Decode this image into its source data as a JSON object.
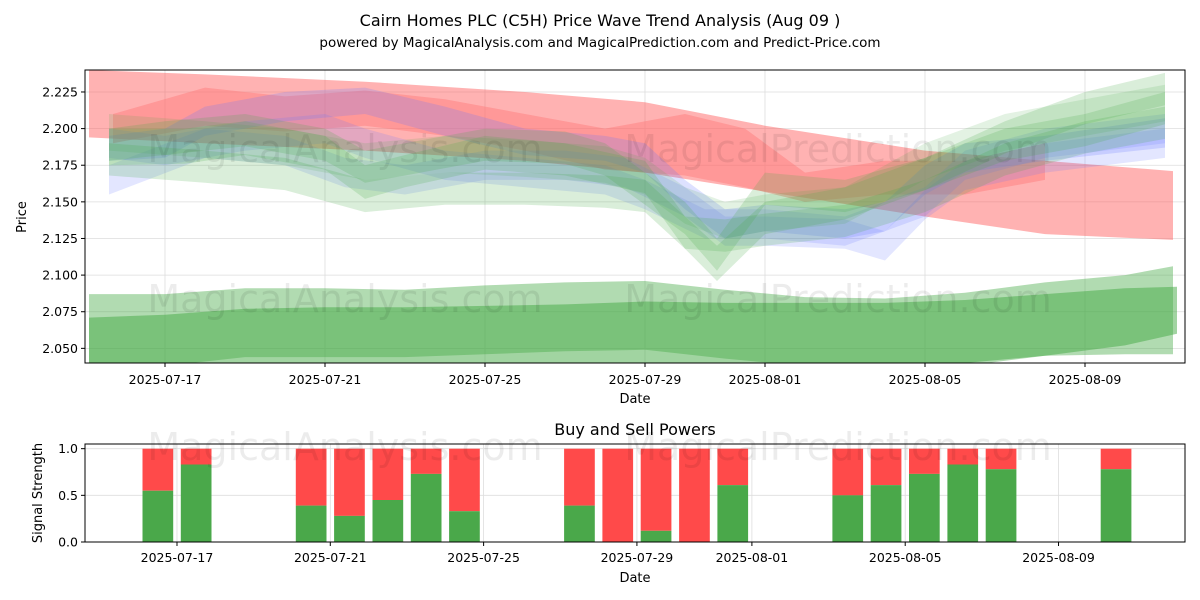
{
  "chart_data": [
    {
      "type": "area",
      "title": "Cairn Homes PLC (C5H) Price Wave Trend Analysis (Aug 09 )",
      "subtitle": "powered by MagicalAnalysis.com and MagicalPrediction.com and Predict-Price.com",
      "xlabel": "Date",
      "ylabel": "Price",
      "ylim": [
        2.04,
        2.24
      ],
      "xlim": [
        -2,
        25.5
      ],
      "grid": true,
      "x_ticks": [
        {
          "pos": 0,
          "label": "2025-07-17"
        },
        {
          "pos": 4,
          "label": "2025-07-21"
        },
        {
          "pos": 8,
          "label": "2025-07-25"
        },
        {
          "pos": 12,
          "label": "2025-07-29"
        },
        {
          "pos": 15,
          "label": "2025-08-01"
        },
        {
          "pos": 19,
          "label": "2025-08-05"
        },
        {
          "pos": 23,
          "label": "2025-08-09"
        }
      ],
      "y_ticks": [
        "2.050",
        "2.075",
        "2.100",
        "2.125",
        "2.150",
        "2.175",
        "2.200",
        "2.225"
      ],
      "watermarks": [
        "MagicalAnalysis.com",
        "MagicalPrediction.com"
      ],
      "bands": [
        {
          "name": "red-trend",
          "color": "#ff5555",
          "opacity": 0.45,
          "x": [
            -1.9,
            1,
            5,
            9,
            12,
            15,
            19,
            22,
            25.2
          ],
          "upper": [
            2.24,
            2.237,
            2.232,
            2.225,
            2.218,
            2.202,
            2.185,
            2.178,
            2.171
          ],
          "lower": [
            2.194,
            2.19,
            2.185,
            2.178,
            2.17,
            2.157,
            2.14,
            2.128,
            2.124
          ]
        },
        {
          "name": "red-wave",
          "color": "#ff7777",
          "opacity": 0.45,
          "x": [
            -1.3,
            1,
            3,
            5,
            7,
            9,
            11,
            13,
            14.5,
            16,
            18,
            20,
            22
          ],
          "upper": [
            2.21,
            2.228,
            2.222,
            2.226,
            2.22,
            2.21,
            2.2,
            2.21,
            2.2,
            2.17,
            2.178,
            2.178,
            2.19
          ],
          "lower": [
            2.19,
            2.202,
            2.198,
            2.202,
            2.195,
            2.185,
            2.172,
            2.168,
            2.16,
            2.15,
            2.155,
            2.155,
            2.165
          ]
        },
        {
          "name": "blue-wave-1",
          "color": "#6677ff",
          "opacity": 0.22,
          "x": [
            -1.4,
            0,
            1,
            3,
            5,
            7,
            9,
            11,
            12,
            13,
            14,
            15,
            17,
            18,
            19,
            20,
            22,
            25
          ],
          "upper": [
            2.195,
            2.2,
            2.215,
            2.225,
            2.228,
            2.215,
            2.2,
            2.195,
            2.19,
            2.165,
            2.145,
            2.148,
            2.145,
            2.15,
            2.175,
            2.19,
            2.195,
            2.207
          ],
          "lower": [
            2.178,
            2.18,
            2.195,
            2.205,
            2.21,
            2.195,
            2.182,
            2.178,
            2.17,
            2.145,
            2.125,
            2.13,
            2.125,
            2.13,
            2.155,
            2.17,
            2.178,
            2.187
          ]
        },
        {
          "name": "blue-wave-2",
          "color": "#6677ff",
          "opacity": 0.18,
          "x": [
            -1.4,
            1,
            3,
            4.5,
            6,
            8,
            10,
            11.5,
            13,
            14,
            15,
            17,
            18,
            19,
            20,
            22,
            25
          ],
          "upper": [
            2.175,
            2.2,
            2.195,
            2.18,
            2.175,
            2.185,
            2.185,
            2.18,
            2.16,
            2.14,
            2.14,
            2.138,
            2.13,
            2.158,
            2.178,
            2.19,
            2.2
          ],
          "lower": [
            2.155,
            2.18,
            2.175,
            2.16,
            2.155,
            2.165,
            2.165,
            2.16,
            2.14,
            2.12,
            2.12,
            2.118,
            2.11,
            2.138,
            2.158,
            2.17,
            2.18
          ]
        },
        {
          "name": "blue-wave-3",
          "color": "#6677ff",
          "opacity": 0.18,
          "x": [
            -1.4,
            0,
            2,
            4,
            5,
            7,
            9,
            11,
            12,
            13.5,
            15,
            17,
            19,
            20,
            22,
            25
          ],
          "upper": [
            2.2,
            2.195,
            2.205,
            2.21,
            2.2,
            2.185,
            2.18,
            2.175,
            2.165,
            2.145,
            2.145,
            2.14,
            2.16,
            2.185,
            2.2,
            2.21
          ],
          "lower": [
            2.18,
            2.175,
            2.185,
            2.19,
            2.18,
            2.165,
            2.16,
            2.155,
            2.145,
            2.125,
            2.125,
            2.12,
            2.14,
            2.165,
            2.18,
            2.19
          ]
        },
        {
          "name": "green-wave-1",
          "color": "#44aa44",
          "opacity": 0.2,
          "x": [
            -1.4,
            0,
            2,
            4,
            5,
            6,
            8,
            10,
            11,
            12,
            13,
            13.8,
            15,
            17,
            19,
            21,
            23,
            25
          ],
          "upper": [
            2.2,
            2.205,
            2.21,
            2.2,
            2.185,
            2.19,
            2.2,
            2.198,
            2.19,
            2.17,
            2.15,
            2.125,
            2.17,
            2.165,
            2.18,
            2.205,
            2.225,
            2.238
          ],
          "lower": [
            2.178,
            2.182,
            2.188,
            2.178,
            2.163,
            2.168,
            2.178,
            2.176,
            2.168,
            2.148,
            2.128,
            2.103,
            2.148,
            2.143,
            2.158,
            2.183,
            2.203,
            2.216
          ]
        },
        {
          "name": "green-wave-2",
          "color": "#44aa44",
          "opacity": 0.2,
          "x": [
            -1.4,
            0.5,
            2,
            4,
            5,
            6,
            8,
            10,
            12,
            13,
            13.8,
            15,
            17,
            19,
            21,
            23,
            25
          ],
          "upper": [
            2.2,
            2.2,
            2.205,
            2.195,
            2.175,
            2.182,
            2.195,
            2.19,
            2.178,
            2.14,
            2.12,
            2.15,
            2.16,
            2.18,
            2.2,
            2.21,
            2.225
          ],
          "lower": [
            2.175,
            2.176,
            2.182,
            2.172,
            2.152,
            2.16,
            2.172,
            2.168,
            2.156,
            2.118,
            2.096,
            2.128,
            2.138,
            2.158,
            2.178,
            2.188,
            2.203
          ]
        },
        {
          "name": "green-wave-3",
          "color": "#44aa44",
          "opacity": 0.2,
          "x": [
            -1.4,
            1,
            3,
            5,
            7,
            9,
            11,
            12,
            13,
            14,
            15,
            17,
            19,
            21,
            23,
            25
          ],
          "upper": [
            2.19,
            2.185,
            2.18,
            2.165,
            2.17,
            2.17,
            2.168,
            2.165,
            2.14,
            2.138,
            2.142,
            2.148,
            2.165,
            2.19,
            2.205,
            2.215
          ],
          "lower": [
            2.168,
            2.163,
            2.158,
            2.143,
            2.148,
            2.148,
            2.146,
            2.143,
            2.118,
            2.116,
            2.12,
            2.126,
            2.143,
            2.168,
            2.183,
            2.193
          ]
        },
        {
          "name": "green-wave-4",
          "color": "#44aa44",
          "opacity": 0.15,
          "x": [
            -1.4,
            1,
            3,
            5,
            7,
            9,
            11,
            12,
            13,
            14,
            15,
            17,
            19,
            21,
            23,
            25
          ],
          "upper": [
            2.21,
            2.205,
            2.2,
            2.19,
            2.195,
            2.192,
            2.188,
            2.18,
            2.16,
            2.15,
            2.155,
            2.16,
            2.19,
            2.21,
            2.22,
            2.23
          ],
          "lower": [
            2.185,
            2.18,
            2.175,
            2.165,
            2.17,
            2.167,
            2.163,
            2.155,
            2.135,
            2.125,
            2.13,
            2.135,
            2.165,
            2.185,
            2.195,
            2.205
          ]
        },
        {
          "name": "lower-green-outer",
          "color": "#44aa44",
          "opacity": 0.42,
          "x": [
            -1.9,
            0,
            2,
            4,
            6,
            8,
            10,
            12,
            14,
            16,
            18,
            20,
            22,
            24,
            25.2
          ],
          "upper": [
            2.087,
            2.087,
            2.091,
            2.091,
            2.09,
            2.093,
            2.095,
            2.096,
            2.09,
            2.085,
            2.084,
            2.088,
            2.095,
            2.1,
            2.106
          ],
          "lower": [
            2.035,
            2.038,
            2.044,
            2.044,
            2.044,
            2.046,
            2.048,
            2.049,
            2.043,
            2.038,
            2.035,
            2.038,
            2.045,
            2.046,
            2.046
          ]
        },
        {
          "name": "lower-green-core",
          "color": "#44aa44",
          "opacity": 0.5,
          "x": [
            -1.9,
            0,
            2,
            4,
            6,
            8,
            10,
            12,
            14,
            16,
            18,
            20,
            22,
            24,
            25.3
          ],
          "upper": [
            2.071,
            2.073,
            2.077,
            2.078,
            2.078,
            2.079,
            2.08,
            2.082,
            2.081,
            2.081,
            2.081,
            2.083,
            2.087,
            2.091,
            2.092
          ],
          "lower": [
            2.04,
            2.04,
            2.04,
            2.04,
            2.04,
            2.04,
            2.04,
            2.04,
            2.04,
            2.04,
            2.04,
            2.04,
            2.045,
            2.052,
            2.06
          ]
        }
      ]
    },
    {
      "type": "bar",
      "title": "Buy and Sell Powers",
      "xlabel": "Date",
      "ylabel": "Signal Strength",
      "ylim": [
        0,
        1.05
      ],
      "xlim": [
        -2.4,
        26.3
      ],
      "grid": true,
      "x_ticks": [
        {
          "pos": 0,
          "label": "2025-07-17"
        },
        {
          "pos": 4,
          "label": "2025-07-21"
        },
        {
          "pos": 8,
          "label": "2025-07-25"
        },
        {
          "pos": 12,
          "label": "2025-07-29"
        },
        {
          "pos": 15,
          "label": "2025-08-01"
        },
        {
          "pos": 19,
          "label": "2025-08-05"
        },
        {
          "pos": 23,
          "label": "2025-08-09"
        }
      ],
      "y_ticks": [
        "0.0",
        "0.5",
        "1.0"
      ],
      "buy_color": "#4aa84a",
      "sell_color": "#ff4a4a",
      "x": [
        -0.5,
        0.5,
        3.5,
        4.5,
        5.5,
        6.5,
        7.5,
        10.5,
        11.5,
        12.5,
        13.5,
        14.5,
        17.5,
        18.5,
        19.5,
        20.5,
        21.5,
        24.5
      ],
      "series": [
        {
          "name": "Buy",
          "values": [
            0.55,
            0.83,
            0.39,
            0.28,
            0.45,
            0.73,
            0.33,
            0.39,
            0.0,
            0.12,
            0.0,
            0.61,
            0.5,
            0.61,
            0.73,
            0.83,
            0.78,
            0.78
          ]
        },
        {
          "name": "Sell",
          "values": [
            0.45,
            0.17,
            0.61,
            0.72,
            0.55,
            0.27,
            0.67,
            0.61,
            1.0,
            0.88,
            1.0,
            0.39,
            0.5,
            0.39,
            0.27,
            0.17,
            0.22,
            0.22
          ]
        }
      ],
      "watermarks": [
        "MagicalAnalysis.com",
        "MagicalPrediction.com"
      ]
    }
  ]
}
